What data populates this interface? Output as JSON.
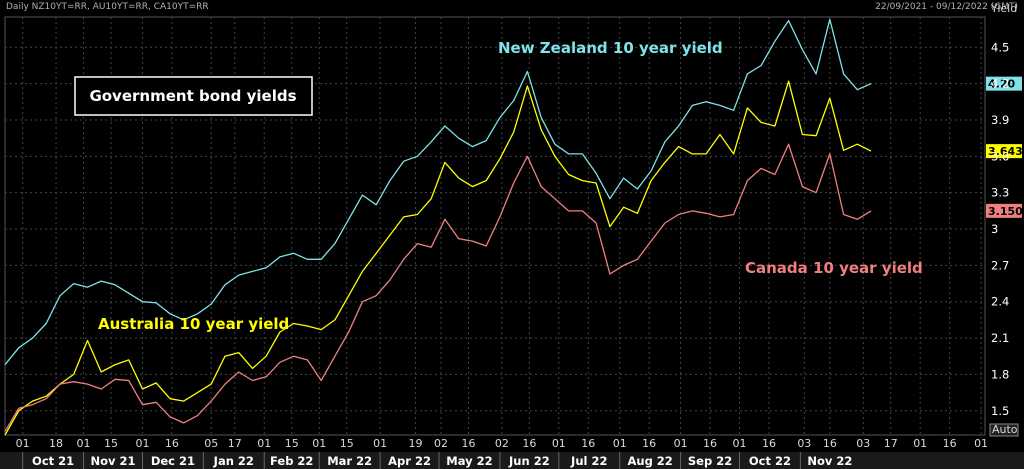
{
  "header": {
    "left": "Daily NZ10YT=RR, AU10YT=RR, CA10YT=RR",
    "right": "22/09/2021 - 09/12/2022 (GMT)"
  },
  "chart_data": {
    "type": "line",
    "title": "Government bond yields",
    "ylabel": "Yield",
    "ylim": [
      1.3,
      4.75
    ],
    "y_ticks": [
      "1.5",
      "1.8",
      "2.1",
      "2.4",
      "2.7",
      "3",
      "3.3",
      "3.6",
      "3.9",
      "4.2",
      "4.5"
    ],
    "y_tick_values": [
      1.5,
      1.8,
      2.1,
      2.4,
      2.7,
      3.0,
      3.3,
      3.6,
      3.9,
      4.2,
      4.5
    ],
    "y_axis_mode": "Auto",
    "x_day_ticks": [
      "01",
      "18",
      "01",
      "15",
      "01",
      "16",
      "05",
      "17",
      "01",
      "15",
      "01",
      "15",
      "01",
      "19",
      "02",
      "16",
      "02",
      "16",
      "01",
      "16",
      "01",
      "16",
      "01",
      "16",
      "01",
      "16",
      "03",
      "16",
      "03",
      "17",
      "01",
      "16",
      "01"
    ],
    "x_day_tick_dates": [
      "2021-10-01",
      "2021-10-18",
      "2021-11-01",
      "2021-11-15",
      "2021-12-01",
      "2021-12-16",
      "2022-01-05",
      "2022-01-17",
      "2022-02-01",
      "2022-02-15",
      "2022-03-01",
      "2022-03-15",
      "2022-04-01",
      "2022-04-19",
      "2022-05-02",
      "2022-05-16",
      "2022-06-02",
      "2022-06-16",
      "2022-07-01",
      "2022-07-16",
      "2022-08-01",
      "2022-08-16",
      "2022-09-01",
      "2022-09-16",
      "2022-10-01",
      "2022-10-16",
      "2022-11-03",
      "2022-11-16",
      "2022-12-03",
      "2022-12-17",
      "2023-01-01",
      "2023-01-16",
      "2023-02-01"
    ],
    "x_months": [
      {
        "label": "Oct 21",
        "start": "2021-10-01",
        "end": "2021-11-01"
      },
      {
        "label": "Nov 21",
        "start": "2021-11-01",
        "end": "2021-12-01"
      },
      {
        "label": "Dec 21",
        "start": "2021-12-01",
        "end": "2022-01-01"
      },
      {
        "label": "Jan 22",
        "start": "2022-01-01",
        "end": "2022-02-01"
      },
      {
        "label": "Feb 22",
        "start": "2022-02-01",
        "end": "2022-03-01"
      },
      {
        "label": "Mar 22",
        "start": "2022-03-01",
        "end": "2022-04-01"
      },
      {
        "label": "Apr 22",
        "start": "2022-04-01",
        "end": "2022-05-01"
      },
      {
        "label": "May 22",
        "start": "2022-05-01",
        "end": "2022-06-01"
      },
      {
        "label": "Jun 22",
        "start": "2022-06-01",
        "end": "2022-07-01"
      },
      {
        "label": "Jul 22",
        "start": "2022-07-01",
        "end": "2022-08-01"
      },
      {
        "label": "Aug 22",
        "start": "2022-08-01",
        "end": "2022-09-01"
      },
      {
        "label": "Sep 22",
        "start": "2022-09-01",
        "end": "2022-10-01"
      },
      {
        "label": "Oct 22",
        "start": "2022-10-01",
        "end": "2022-11-01"
      },
      {
        "label": "Nov 22",
        "start": "2022-11-01",
        "end": "2022-12-01"
      }
    ],
    "series": [
      {
        "name": "New Zealand 10 year yield",
        "color": "#7fe3e8",
        "last_label": "4.20",
        "points": [
          [
            "2021-09-22",
            1.88
          ],
          [
            "2021-09-29",
            2.02
          ],
          [
            "2021-10-06",
            2.1
          ],
          [
            "2021-10-13",
            2.22
          ],
          [
            "2021-10-20",
            2.45
          ],
          [
            "2021-10-27",
            2.55
          ],
          [
            "2021-11-03",
            2.52
          ],
          [
            "2021-11-10",
            2.57
          ],
          [
            "2021-11-17",
            2.54
          ],
          [
            "2021-11-24",
            2.47
          ],
          [
            "2021-12-01",
            2.4
          ],
          [
            "2021-12-08",
            2.39
          ],
          [
            "2021-12-15",
            2.3
          ],
          [
            "2021-12-22",
            2.25
          ],
          [
            "2021-12-29",
            2.3
          ],
          [
            "2022-01-05",
            2.38
          ],
          [
            "2022-01-12",
            2.54
          ],
          [
            "2022-01-19",
            2.62
          ],
          [
            "2022-01-26",
            2.65
          ],
          [
            "2022-02-02",
            2.68
          ],
          [
            "2022-02-09",
            2.77
          ],
          [
            "2022-02-16",
            2.8
          ],
          [
            "2022-02-23",
            2.75
          ],
          [
            "2022-03-02",
            2.75
          ],
          [
            "2022-03-09",
            2.88
          ],
          [
            "2022-03-16",
            3.08
          ],
          [
            "2022-03-23",
            3.28
          ],
          [
            "2022-03-30",
            3.2
          ],
          [
            "2022-04-06",
            3.4
          ],
          [
            "2022-04-13",
            3.56
          ],
          [
            "2022-04-20",
            3.6
          ],
          [
            "2022-04-27",
            3.72
          ],
          [
            "2022-05-04",
            3.85
          ],
          [
            "2022-05-11",
            3.75
          ],
          [
            "2022-05-18",
            3.68
          ],
          [
            "2022-05-25",
            3.73
          ],
          [
            "2022-06-01",
            3.92
          ],
          [
            "2022-06-08",
            4.06
          ],
          [
            "2022-06-15",
            4.3
          ],
          [
            "2022-06-22",
            3.92
          ],
          [
            "2022-06-29",
            3.7
          ],
          [
            "2022-07-06",
            3.62
          ],
          [
            "2022-07-13",
            3.62
          ],
          [
            "2022-07-20",
            3.46
          ],
          [
            "2022-07-27",
            3.25
          ],
          [
            "2022-08-03",
            3.42
          ],
          [
            "2022-08-10",
            3.33
          ],
          [
            "2022-08-17",
            3.48
          ],
          [
            "2022-08-24",
            3.72
          ],
          [
            "2022-08-31",
            3.85
          ],
          [
            "2022-09-07",
            4.02
          ],
          [
            "2022-09-14",
            4.05
          ],
          [
            "2022-09-21",
            4.02
          ],
          [
            "2022-09-28",
            3.98
          ],
          [
            "2022-10-05",
            4.28
          ],
          [
            "2022-10-12",
            4.35
          ],
          [
            "2022-10-19",
            4.55
          ],
          [
            "2022-10-26",
            4.72
          ],
          [
            "2022-11-02",
            4.48
          ],
          [
            "2022-11-09",
            4.28
          ],
          [
            "2022-11-16",
            4.73
          ],
          [
            "2022-11-23",
            4.28
          ],
          [
            "2022-11-30",
            4.15
          ],
          [
            "2022-12-07",
            4.2
          ]
        ]
      },
      {
        "name": "Australia 10 year yield",
        "color": "#ffff00",
        "last_label": "3.643",
        "points": [
          [
            "2021-09-22",
            1.3
          ],
          [
            "2021-09-29",
            1.5
          ],
          [
            "2021-10-06",
            1.58
          ],
          [
            "2021-10-13",
            1.62
          ],
          [
            "2021-10-20",
            1.72
          ],
          [
            "2021-10-27",
            1.8
          ],
          [
            "2021-11-03",
            2.08
          ],
          [
            "2021-11-10",
            1.82
          ],
          [
            "2021-11-17",
            1.88
          ],
          [
            "2021-11-24",
            1.92
          ],
          [
            "2021-12-01",
            1.68
          ],
          [
            "2021-12-08",
            1.73
          ],
          [
            "2021-12-15",
            1.6
          ],
          [
            "2021-12-22",
            1.58
          ],
          [
            "2021-12-29",
            1.65
          ],
          [
            "2022-01-05",
            1.72
          ],
          [
            "2022-01-12",
            1.95
          ],
          [
            "2022-01-19",
            1.98
          ],
          [
            "2022-01-26",
            1.85
          ],
          [
            "2022-02-02",
            1.95
          ],
          [
            "2022-02-09",
            2.15
          ],
          [
            "2022-02-16",
            2.22
          ],
          [
            "2022-02-23",
            2.2
          ],
          [
            "2022-03-02",
            2.17
          ],
          [
            "2022-03-09",
            2.25
          ],
          [
            "2022-03-16",
            2.45
          ],
          [
            "2022-03-23",
            2.65
          ],
          [
            "2022-03-30",
            2.8
          ],
          [
            "2022-04-06",
            2.95
          ],
          [
            "2022-04-13",
            3.1
          ],
          [
            "2022-04-20",
            3.12
          ],
          [
            "2022-04-27",
            3.25
          ],
          [
            "2022-05-04",
            3.55
          ],
          [
            "2022-05-11",
            3.42
          ],
          [
            "2022-05-18",
            3.35
          ],
          [
            "2022-05-25",
            3.4
          ],
          [
            "2022-06-01",
            3.58
          ],
          [
            "2022-06-08",
            3.8
          ],
          [
            "2022-06-15",
            4.18
          ],
          [
            "2022-06-22",
            3.82
          ],
          [
            "2022-06-29",
            3.6
          ],
          [
            "2022-07-06",
            3.45
          ],
          [
            "2022-07-13",
            3.4
          ],
          [
            "2022-07-20",
            3.38
          ],
          [
            "2022-07-27",
            3.02
          ],
          [
            "2022-08-03",
            3.18
          ],
          [
            "2022-08-10",
            3.13
          ],
          [
            "2022-08-17",
            3.4
          ],
          [
            "2022-08-24",
            3.55
          ],
          [
            "2022-08-31",
            3.68
          ],
          [
            "2022-09-07",
            3.62
          ],
          [
            "2022-09-14",
            3.62
          ],
          [
            "2022-09-21",
            3.78
          ],
          [
            "2022-09-28",
            3.62
          ],
          [
            "2022-10-05",
            4.0
          ],
          [
            "2022-10-12",
            3.88
          ],
          [
            "2022-10-19",
            3.85
          ],
          [
            "2022-10-26",
            4.22
          ],
          [
            "2022-11-02",
            3.78
          ],
          [
            "2022-11-09",
            3.77
          ],
          [
            "2022-11-16",
            4.08
          ],
          [
            "2022-11-23",
            3.65
          ],
          [
            "2022-11-30",
            3.7
          ],
          [
            "2022-12-07",
            3.643
          ]
        ]
      },
      {
        "name": "Canada 10 year yield",
        "color": "#f08080",
        "last_label": "3.150",
        "points": [
          [
            "2021-09-22",
            1.33
          ],
          [
            "2021-09-29",
            1.52
          ],
          [
            "2021-10-06",
            1.55
          ],
          [
            "2021-10-13",
            1.6
          ],
          [
            "2021-10-20",
            1.72
          ],
          [
            "2021-10-27",
            1.74
          ],
          [
            "2021-11-03",
            1.72
          ],
          [
            "2021-11-10",
            1.68
          ],
          [
            "2021-11-17",
            1.76
          ],
          [
            "2021-11-24",
            1.75
          ],
          [
            "2021-12-01",
            1.55
          ],
          [
            "2021-12-08",
            1.57
          ],
          [
            "2021-12-15",
            1.45
          ],
          [
            "2021-12-22",
            1.4
          ],
          [
            "2021-12-29",
            1.46
          ],
          [
            "2022-01-05",
            1.58
          ],
          [
            "2022-01-12",
            1.72
          ],
          [
            "2022-01-19",
            1.82
          ],
          [
            "2022-01-26",
            1.75
          ],
          [
            "2022-02-02",
            1.78
          ],
          [
            "2022-02-09",
            1.9
          ],
          [
            "2022-02-16",
            1.95
          ],
          [
            "2022-02-23",
            1.92
          ],
          [
            "2022-03-02",
            1.75
          ],
          [
            "2022-03-09",
            1.95
          ],
          [
            "2022-03-16",
            2.15
          ],
          [
            "2022-03-23",
            2.4
          ],
          [
            "2022-03-30",
            2.45
          ],
          [
            "2022-04-06",
            2.58
          ],
          [
            "2022-04-13",
            2.75
          ],
          [
            "2022-04-20",
            2.88
          ],
          [
            "2022-04-27",
            2.85
          ],
          [
            "2022-05-04",
            3.08
          ],
          [
            "2022-05-11",
            2.92
          ],
          [
            "2022-05-18",
            2.9
          ],
          [
            "2022-05-25",
            2.86
          ],
          [
            "2022-06-01",
            3.1
          ],
          [
            "2022-06-08",
            3.38
          ],
          [
            "2022-06-15",
            3.6
          ],
          [
            "2022-06-22",
            3.35
          ],
          [
            "2022-06-29",
            3.25
          ],
          [
            "2022-07-06",
            3.15
          ],
          [
            "2022-07-13",
            3.15
          ],
          [
            "2022-07-20",
            3.05
          ],
          [
            "2022-07-27",
            2.63
          ],
          [
            "2022-08-03",
            2.7
          ],
          [
            "2022-08-10",
            2.75
          ],
          [
            "2022-08-17",
            2.9
          ],
          [
            "2022-08-24",
            3.05
          ],
          [
            "2022-08-31",
            3.12
          ],
          [
            "2022-09-07",
            3.15
          ],
          [
            "2022-09-14",
            3.13
          ],
          [
            "2022-09-21",
            3.1
          ],
          [
            "2022-09-28",
            3.12
          ],
          [
            "2022-10-05",
            3.4
          ],
          [
            "2022-10-12",
            3.5
          ],
          [
            "2022-10-19",
            3.45
          ],
          [
            "2022-10-26",
            3.7
          ],
          [
            "2022-11-02",
            3.35
          ],
          [
            "2022-11-09",
            3.3
          ],
          [
            "2022-11-16",
            3.62
          ],
          [
            "2022-11-23",
            3.12
          ],
          [
            "2022-11-30",
            3.08
          ],
          [
            "2022-12-07",
            3.15
          ]
        ]
      }
    ]
  }
}
